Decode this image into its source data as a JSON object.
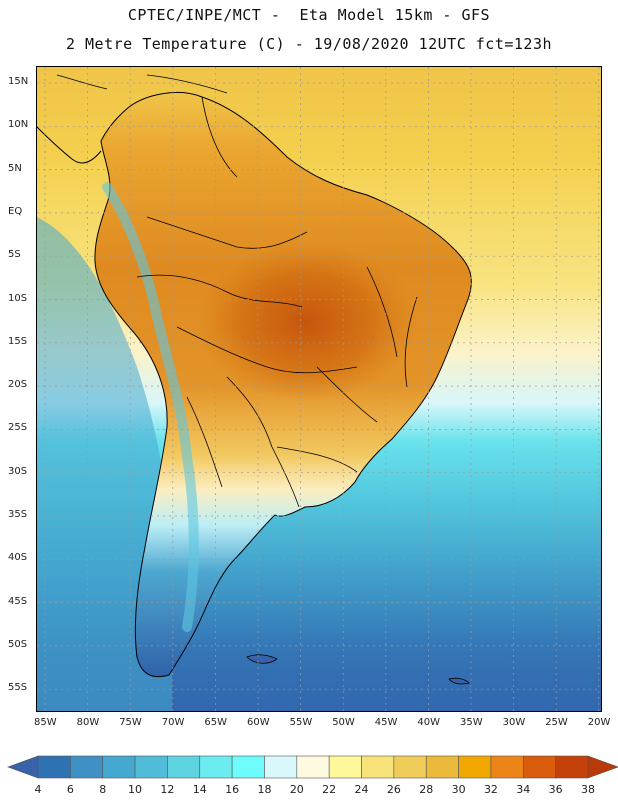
{
  "header": {
    "line1": "CPTEC/INPE/MCT -  Eta Model 15km - GFS",
    "line2": "2 Metre Temperature (C) - 19/08/2020 12UTC fct=123h"
  },
  "map": {
    "lat_labels": [
      "15N",
      "10N",
      "5N",
      "EQ",
      "5S",
      "10S",
      "15S",
      "20S",
      "25S",
      "30S",
      "35S",
      "40S",
      "45S",
      "50S",
      "55S"
    ],
    "lon_labels": [
      "85W",
      "80W",
      "75W",
      "70W",
      "65W",
      "60W",
      "55W",
      "50W",
      "45W",
      "40W",
      "35W",
      "30W",
      "25W",
      "20W"
    ],
    "colors": {
      "ocean_north": "#f0c448",
      "land_hot": "#e08a1c",
      "land_core": "#cf6a10",
      "grid": "#9a9a9a",
      "coast": "#000000"
    }
  },
  "legend": {
    "ticks": [
      "4",
      "6",
      "8",
      "10",
      "12",
      "14",
      "16",
      "18",
      "20",
      "22",
      "24",
      "26",
      "28",
      "30",
      "32",
      "34",
      "36",
      "38"
    ],
    "colors": [
      "#3a62a8",
      "#2f72b4",
      "#3f90c4",
      "#45a8d0",
      "#50bcd8",
      "#5ed4e0",
      "#6cecf0",
      "#6ffcfc",
      "#d8f8fc",
      "#fefae0",
      "#fff89a",
      "#f8e27a",
      "#f0cc58",
      "#ecba3a",
      "#f0a800",
      "#ec8418",
      "#d85c0c",
      "#c4420a",
      "#b83a08"
    ]
  }
}
